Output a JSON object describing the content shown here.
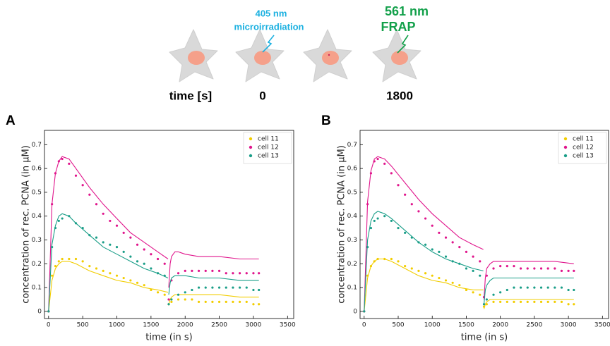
{
  "figure": {
    "label_405": "405 nm",
    "label_micro": "microirradiation",
    "label_561": "561 nm",
    "label_frap": "FRAP",
    "time_label": "time [s]",
    "time_0": "0",
    "time_1800": "1800"
  },
  "chart_data": [
    {
      "type": "scatter",
      "panel": "A",
      "xlabel": "time (in s)",
      "ylabel": "concentration of rec. PCNA (in μM)",
      "xlim": [
        -60,
        3590
      ],
      "ylim": [
        -0.03,
        0.76
      ],
      "xticks": [
        0,
        500,
        1000,
        1500,
        2000,
        2500,
        3000,
        3500
      ],
      "yticks": [
        0,
        0.1,
        0.2,
        0.3,
        0.4,
        0.5,
        0.6,
        0.7
      ],
      "legend": "upper right",
      "x": [
        0,
        50,
        100,
        150,
        200,
        300,
        400,
        500,
        600,
        700,
        800,
        900,
        1000,
        1100,
        1200,
        1300,
        1400,
        1500,
        1600,
        1700,
        1760,
        1800,
        1900,
        2000,
        2100,
        2200,
        2300,
        2400,
        2500,
        2600,
        2700,
        2800,
        2900,
        3000,
        3080
      ],
      "fit_x": [
        0,
        50,
        100,
        150,
        200,
        300,
        400,
        600,
        800,
        1000,
        1200,
        1400,
        1600,
        1750,
        1752,
        1760,
        1780,
        1800,
        1850,
        1900,
        2000,
        2200,
        2500,
        2800,
        3080
      ],
      "series": [
        {
          "name": "cell 11",
          "color": "#f2cd00",
          "values": [
            0,
            0.15,
            0.19,
            0.21,
            0.22,
            0.22,
            0.22,
            0.21,
            0.19,
            0.18,
            0.17,
            0.16,
            0.15,
            0.14,
            0.13,
            0.12,
            0.11,
            0.09,
            0.08,
            0.07,
            0.03,
            0.04,
            0.05,
            0.05,
            0.05,
            0.04,
            0.04,
            0.04,
            0.04,
            0.04,
            0.04,
            0.04,
            0.04,
            0.03,
            0.03
          ],
          "fit_values": [
            0,
            0.13,
            0.18,
            0.2,
            0.21,
            0.21,
            0.2,
            0.17,
            0.15,
            0.13,
            0.12,
            0.1,
            0.09,
            0.08,
            null,
            0.03,
            0.05,
            0.06,
            0.07,
            0.07,
            0.07,
            0.07,
            0.07,
            0.06,
            0.06
          ]
        },
        {
          "name": "cell 12",
          "color": "#e0158c",
          "values": [
            0,
            0.45,
            0.58,
            0.63,
            0.64,
            0.62,
            0.57,
            0.53,
            0.49,
            0.45,
            0.41,
            0.38,
            0.36,
            0.33,
            0.31,
            0.28,
            0.26,
            0.24,
            0.22,
            0.2,
            0.05,
            0.13,
            0.16,
            0.17,
            0.17,
            0.17,
            0.17,
            0.17,
            0.17,
            0.16,
            0.16,
            0.16,
            0.16,
            0.16,
            0.16
          ],
          "fit_values": [
            0,
            0.45,
            0.58,
            0.63,
            0.65,
            0.64,
            0.6,
            0.52,
            0.45,
            0.39,
            0.33,
            0.29,
            0.25,
            0.22,
            null,
            0.1,
            0.2,
            0.23,
            0.25,
            0.25,
            0.24,
            0.23,
            0.23,
            0.22,
            0.22
          ]
        },
        {
          "name": "cell 13",
          "color": "#1a9e88",
          "values": [
            0,
            0.27,
            0.35,
            0.38,
            0.39,
            0.4,
            0.37,
            0.35,
            0.32,
            0.31,
            0.29,
            0.28,
            0.27,
            0.25,
            0.23,
            0.21,
            0.2,
            0.18,
            0.16,
            0.15,
            0.03,
            0.05,
            0.07,
            0.08,
            0.09,
            0.1,
            0.1,
            0.1,
            0.1,
            0.1,
            0.1,
            0.1,
            0.1,
            0.09,
            0.09
          ],
          "fit_values": [
            0,
            0.28,
            0.36,
            0.4,
            0.41,
            0.4,
            0.37,
            0.32,
            0.27,
            0.24,
            0.21,
            0.18,
            0.16,
            0.14,
            null,
            0.07,
            0.12,
            0.14,
            0.15,
            0.15,
            0.15,
            0.14,
            0.14,
            0.13,
            0.13
          ]
        }
      ]
    },
    {
      "type": "scatter",
      "panel": "B",
      "xlabel": "time (in s)",
      "ylabel": "concentration of rec. PCNA (in μM)",
      "xlim": [
        -60,
        3590
      ],
      "ylim": [
        -0.03,
        0.76
      ],
      "xticks": [
        0,
        500,
        1000,
        1500,
        2000,
        2500,
        3000,
        3500
      ],
      "yticks": [
        0,
        0.1,
        0.2,
        0.3,
        0.4,
        0.5,
        0.6,
        0.7
      ],
      "legend": "upper right",
      "x": [
        0,
        50,
        100,
        150,
        200,
        300,
        400,
        500,
        600,
        700,
        800,
        900,
        1000,
        1100,
        1200,
        1300,
        1400,
        1500,
        1600,
        1700,
        1760,
        1800,
        1900,
        2000,
        2100,
        2200,
        2300,
        2400,
        2500,
        2600,
        2700,
        2800,
        2900,
        3000,
        3080
      ],
      "fit_x": [
        0,
        50,
        100,
        150,
        200,
        300,
        400,
        600,
        800,
        1000,
        1200,
        1400,
        1600,
        1750,
        1752,
        1760,
        1780,
        1800,
        1850,
        1900,
        2000,
        2200,
        2500,
        2800,
        3080
      ],
      "series": [
        {
          "name": "cell 11",
          "color": "#f2cd00",
          "values": [
            0,
            0.15,
            0.19,
            0.21,
            0.22,
            0.22,
            0.22,
            0.21,
            0.19,
            0.18,
            0.17,
            0.16,
            0.15,
            0.14,
            0.13,
            0.12,
            0.11,
            0.09,
            0.08,
            0.07,
            0.02,
            0.03,
            0.04,
            0.04,
            0.04,
            0.04,
            0.04,
            0.04,
            0.04,
            0.04,
            0.04,
            0.04,
            0.04,
            0.03,
            0.03
          ],
          "fit_values": [
            0,
            0.14,
            0.19,
            0.21,
            0.22,
            0.22,
            0.21,
            0.18,
            0.15,
            0.13,
            0.12,
            0.1,
            0.09,
            0.09,
            null,
            0.01,
            0.03,
            0.04,
            0.05,
            0.05,
            0.05,
            0.05,
            0.05,
            0.05,
            0.05
          ]
        },
        {
          "name": "cell 12",
          "color": "#e0158c",
          "values": [
            0,
            0.45,
            0.58,
            0.63,
            0.64,
            0.62,
            0.58,
            0.53,
            0.49,
            0.45,
            0.42,
            0.39,
            0.36,
            0.33,
            0.31,
            0.29,
            0.27,
            0.25,
            0.23,
            0.21,
            0.06,
            0.15,
            0.18,
            0.19,
            0.19,
            0.19,
            0.18,
            0.18,
            0.18,
            0.18,
            0.18,
            0.18,
            0.17,
            0.17,
            0.17
          ],
          "fit_values": [
            0,
            0.46,
            0.59,
            0.64,
            0.65,
            0.64,
            0.61,
            0.54,
            0.47,
            0.41,
            0.36,
            0.31,
            0.28,
            0.26,
            null,
            0.05,
            0.14,
            0.18,
            0.2,
            0.21,
            0.21,
            0.21,
            0.21,
            0.21,
            0.2
          ]
        },
        {
          "name": "cell 13",
          "color": "#1a9e88",
          "values": [
            0,
            0.27,
            0.35,
            0.38,
            0.39,
            0.4,
            0.38,
            0.35,
            0.33,
            0.31,
            0.29,
            0.28,
            0.26,
            0.25,
            0.23,
            0.21,
            0.2,
            0.18,
            0.17,
            0.15,
            0.03,
            0.05,
            0.07,
            0.08,
            0.09,
            0.1,
            0.1,
            0.1,
            0.1,
            0.1,
            0.1,
            0.1,
            0.1,
            0.09,
            0.09
          ],
          "fit_values": [
            0,
            0.3,
            0.38,
            0.41,
            0.42,
            0.41,
            0.39,
            0.34,
            0.29,
            0.25,
            0.22,
            0.2,
            0.18,
            0.17,
            null,
            0.03,
            0.09,
            0.11,
            0.13,
            0.14,
            0.14,
            0.14,
            0.14,
            0.14,
            0.14
          ]
        }
      ]
    }
  ]
}
